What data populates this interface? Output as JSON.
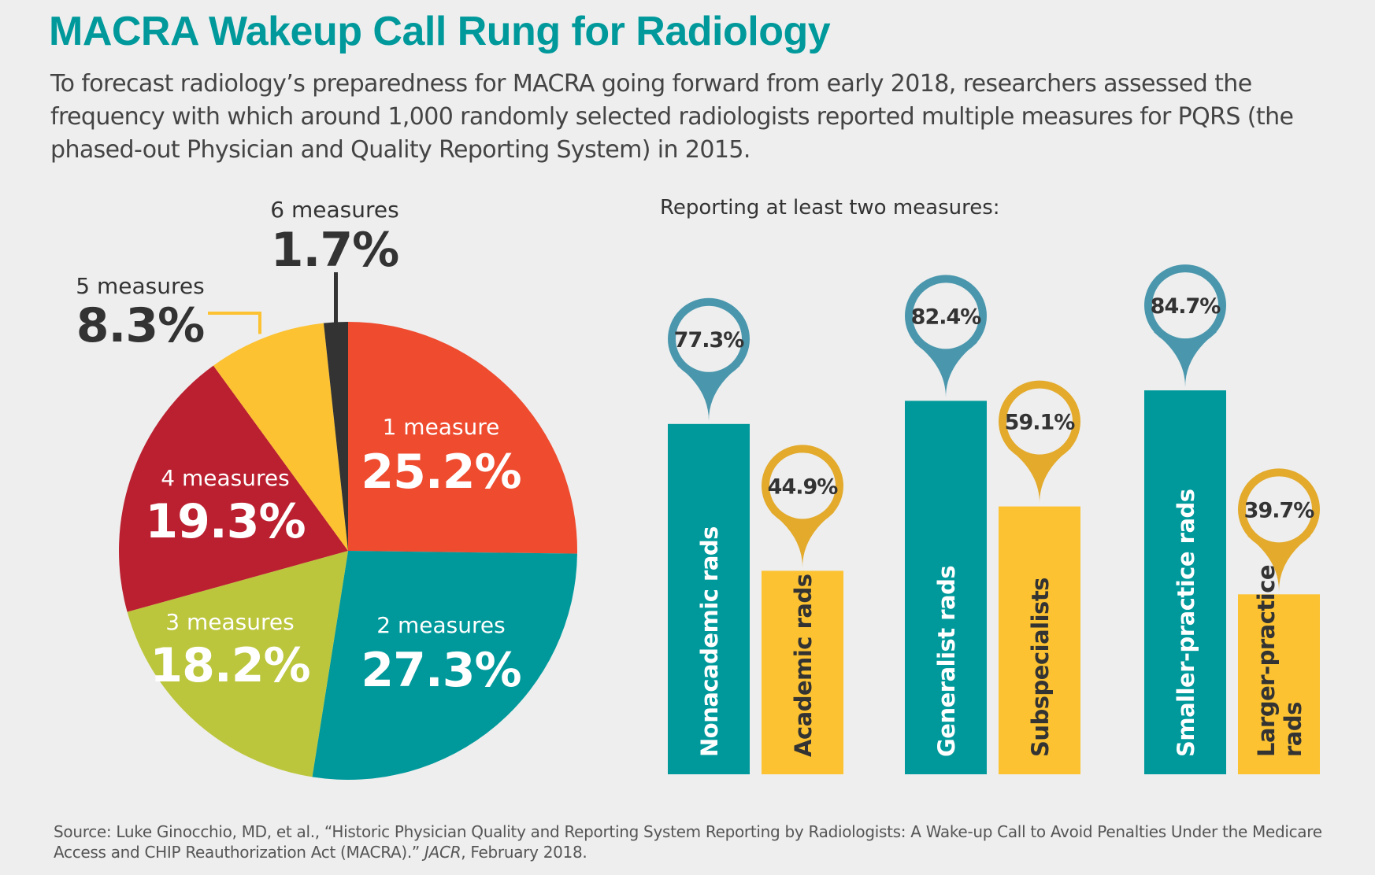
{
  "title": "MACRA Wakeup Call Rung for Radiology",
  "subtitle": "To forecast radiology’s preparedness for MACRA going forward from early 2018, researchers assessed the frequency with which around 1,000 randomly selected radiologists reported multiple measures for PQRS (the phased-out Physician and Quality Reporting System) in 2015.",
  "source": {
    "prefix": "Source: Luke Ginocchio, MD, et al., “Historic Physician Quality and Reporting System Reporting by Radiologists: A Wake-up Call to Avoid Penalties Under the Medicare Access and CHIP Reauthorization Act (MACRA).” ",
    "journal": "JACR",
    "suffix": ", February 2018."
  },
  "chart_data": [
    {
      "type": "pie",
      "slices": [
        {
          "label": "1 measure",
          "value": 25.2,
          "value_label": "25.2%",
          "color": "#ee4b2f"
        },
        {
          "label": "2 measures",
          "value": 27.3,
          "value_label": "27.3%",
          "color": "#00999b"
        },
        {
          "label": "3 measures",
          "value": 18.2,
          "value_label": "18.2%",
          "color": "#bcc63c"
        },
        {
          "label": "4 measures",
          "value": 19.3,
          "value_label": "19.3%",
          "color": "#bb2030"
        },
        {
          "label": "5 measures",
          "value": 8.3,
          "value_label": "8.3%",
          "color": "#fcc232"
        },
        {
          "label": "6 measures",
          "value": 1.7,
          "value_label": "1.7%",
          "color": "#333333"
        }
      ]
    },
    {
      "type": "bar",
      "title": "Reporting at least two measures:",
      "ylim": [
        0,
        100
      ],
      "categories": [
        "Nonacademic rads",
        "Academic rads",
        "Generalist rads",
        "Subspecialists",
        "Smaller-practice rads",
        "Larger-practice rads"
      ],
      "values": [
        77.3,
        44.9,
        82.4,
        59.1,
        84.7,
        39.7
      ],
      "value_labels": [
        "77.3%",
        "44.9%",
        "82.4%",
        "59.1%",
        "84.7%",
        "39.7%"
      ],
      "colors": [
        "#00999b",
        "#fcc232",
        "#00999b",
        "#fcc232",
        "#00999b",
        "#fcc232"
      ],
      "pin_colors": [
        "#4a97ad",
        "#e3aa2c",
        "#4a97ad",
        "#e3aa2c",
        "#4a97ad",
        "#e3aa2c"
      ]
    }
  ]
}
